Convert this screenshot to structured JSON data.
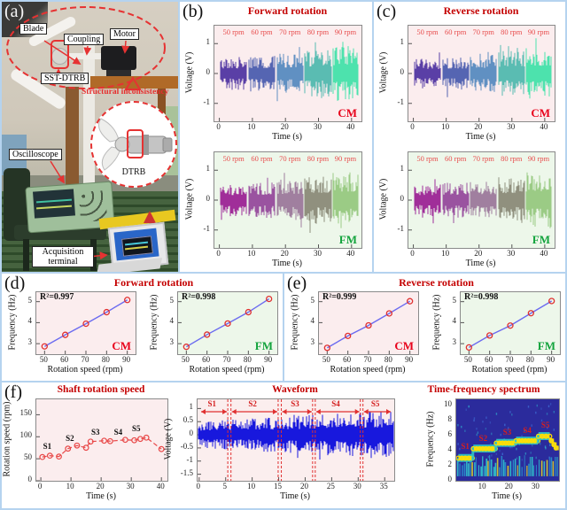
{
  "colors": {
    "frame_blue": "#b5d3ef",
    "title_red": "#c40000",
    "rpm_red": "#e84d4d",
    "cm_red": "#e8001a",
    "fm_green": "#12a33c",
    "cm_bg_pink": "#fbedee",
    "fm_bg_green": "#edf7ea",
    "wave_blue": "#1818dd",
    "fit_line_blue": "#6b6bf0",
    "marker_red": "#e03030",
    "spectrogram_bg": "#2b2b9c"
  },
  "panels": {
    "a": {
      "label": "(a)",
      "blade": "Blade",
      "coupling": "Coupling",
      "motor": "Motor",
      "sst_dtrb": "SST-DTRB",
      "structural_inconsistency": "Structural inconsistency",
      "oscilloscope": "Oscilloscope",
      "dtrb": "DTRB",
      "acquisition_terminal": "Acquisition terminal"
    },
    "b": {
      "label": "(b)",
      "title": "Forward rotation"
    },
    "c": {
      "label": "(c)",
      "title": "Reverse rotation"
    },
    "d": {
      "label": "(d)",
      "title": "Forward rotation"
    },
    "e": {
      "label": "(e)",
      "title": "Reverse rotation"
    },
    "f": {
      "label": "(f)"
    }
  },
  "chart_data": [
    {
      "id": "b-cm",
      "type": "line",
      "render": "noise",
      "panel": "(b)",
      "title": "Forward rotation",
      "xlabel": "Time (s)",
      "ylabel": "Voltage (V)",
      "xlim": [
        -1.5,
        43
      ],
      "ylim": [
        -1.6,
        1.6
      ],
      "xticks": [
        0,
        10,
        20,
        30,
        40
      ],
      "yticks": [
        -1,
        0,
        1
      ],
      "bg": "#fbedee",
      "corner": "CM",
      "corner_color": "#e8001a",
      "rpm_labels": [
        "50 rpm",
        "60 rpm",
        "70 rpm",
        "80 rpm",
        "90 rpm"
      ],
      "segments": [
        {
          "rpm": 50,
          "t": [
            0.3,
            8.3
          ],
          "amp": 0.55,
          "color": "#5a3fa6"
        },
        {
          "rpm": 60,
          "t": [
            8.8,
            16.9
          ],
          "amp": 0.6,
          "color": "#5565b2"
        },
        {
          "rpm": 70,
          "t": [
            17.3,
            25.4
          ],
          "amp": 0.66,
          "color": "#6090c2"
        },
        {
          "rpm": 80,
          "t": [
            25.8,
            33.9
          ],
          "amp": 0.78,
          "color": "#5abcb2"
        },
        {
          "rpm": 90,
          "t": [
            34.3,
            42
          ],
          "amp": 0.92,
          "color": "#4de2ad"
        }
      ]
    },
    {
      "id": "b-fm",
      "type": "line",
      "render": "noise",
      "panel": "(b)",
      "title": "Forward rotation",
      "xlabel": "Time (s)",
      "ylabel": "Voltage (V)",
      "xlim": [
        -1.5,
        43
      ],
      "ylim": [
        -1.6,
        1.6
      ],
      "xticks": [
        0,
        10,
        20,
        30,
        40
      ],
      "yticks": [
        -1,
        0,
        1
      ],
      "bg": "#edf7ea",
      "corner": "FM",
      "corner_color": "#12a33c",
      "rpm_labels": [
        "50 rpm",
        "60 rpm",
        "70 rpm",
        "80 rpm",
        "90 rpm"
      ],
      "segments": [
        {
          "rpm": 50,
          "t": [
            0.3,
            8.3
          ],
          "amp": 0.55,
          "color": "#a02e99"
        },
        {
          "rpm": 60,
          "t": [
            8.8,
            16.9
          ],
          "amp": 0.6,
          "color": "#9a53a0"
        },
        {
          "rpm": 70,
          "t": [
            17.3,
            25.4
          ],
          "amp": 0.68,
          "color": "#a07f9f"
        },
        {
          "rpm": 80,
          "t": [
            25.8,
            33.9
          ],
          "amp": 0.8,
          "color": "#90907e"
        },
        {
          "rpm": 90,
          "t": [
            34.3,
            42
          ],
          "amp": 0.95,
          "color": "#9bcb85"
        }
      ]
    },
    {
      "id": "c-cm",
      "type": "line",
      "render": "noise",
      "panel": "(c)",
      "title": "Reverse rotation",
      "xlabel": "Time (s)",
      "ylabel": "Voltage (V)",
      "xlim": [
        -1.5,
        43
      ],
      "ylim": [
        -1.6,
        1.6
      ],
      "xticks": [
        0,
        10,
        20,
        30,
        40
      ],
      "yticks": [
        -1,
        0,
        1
      ],
      "bg": "#fbedee",
      "corner": "CM",
      "corner_color": "#e8001a",
      "rpm_labels": [
        "50 rpm",
        "60 rpm",
        "70 rpm",
        "80 rpm",
        "90 rpm"
      ],
      "segments": [
        {
          "rpm": 50,
          "t": [
            0.3,
            8.3
          ],
          "amp": 0.5,
          "color": "#5a3fa6"
        },
        {
          "rpm": 60,
          "t": [
            8.8,
            16.9
          ],
          "amp": 0.55,
          "color": "#5565b2"
        },
        {
          "rpm": 70,
          "t": [
            17.3,
            25.4
          ],
          "amp": 0.62,
          "color": "#6090c2"
        },
        {
          "rpm": 80,
          "t": [
            25.8,
            33.9
          ],
          "amp": 0.75,
          "color": "#5abcb2"
        },
        {
          "rpm": 90,
          "t": [
            34.3,
            42
          ],
          "amp": 0.85,
          "color": "#4de2ad"
        }
      ]
    },
    {
      "id": "c-fm",
      "type": "line",
      "render": "noise",
      "panel": "(c)",
      "title": "Reverse rotation",
      "xlabel": "Time (s)",
      "ylabel": "Voltage (V)",
      "xlim": [
        -1.5,
        43
      ],
      "ylim": [
        -1.6,
        1.6
      ],
      "xticks": [
        0,
        10,
        20,
        30,
        40
      ],
      "yticks": [
        -1,
        0,
        1
      ],
      "bg": "#edf7ea",
      "corner": "FM",
      "corner_color": "#12a33c",
      "rpm_labels": [
        "50 rpm",
        "60 rpm",
        "70 rpm",
        "80 rpm",
        "90 rpm"
      ],
      "segments": [
        {
          "rpm": 50,
          "t": [
            0.3,
            8.3
          ],
          "amp": 0.55,
          "color": "#a02e99"
        },
        {
          "rpm": 60,
          "t": [
            8.8,
            16.9
          ],
          "amp": 0.6,
          "color": "#9a53a0"
        },
        {
          "rpm": 70,
          "t": [
            17.3,
            25.4
          ],
          "amp": 0.65,
          "color": "#a07f9f"
        },
        {
          "rpm": 80,
          "t": [
            25.8,
            33.9
          ],
          "amp": 0.78,
          "color": "#90907e"
        },
        {
          "rpm": 90,
          "t": [
            34.3,
            42
          ],
          "amp": 0.95,
          "color": "#9bcb85"
        }
      ]
    },
    {
      "id": "d-cm",
      "type": "scatter",
      "render": "scatterline",
      "panel": "(d)",
      "title": "Forward rotation",
      "r2": "R²=0.997",
      "xlabel": "Rotation speed (rpm)",
      "ylabel": "Frequency (Hz)",
      "xlim": [
        46,
        94
      ],
      "ylim": [
        2.5,
        5.45
      ],
      "xticks": [
        50,
        60,
        70,
        80,
        90
      ],
      "yticks": [
        3,
        4,
        5
      ],
      "bg": "#fbedee",
      "corner": "CM",
      "corner_color": "#e8001a",
      "yloff": 26,
      "x": [
        50,
        60,
        70,
        80,
        90
      ],
      "y": [
        2.87,
        3.42,
        3.95,
        4.5,
        5.08
      ]
    },
    {
      "id": "d-fm",
      "type": "scatter",
      "render": "scatterline",
      "panel": "(d)",
      "title": "Forward rotation",
      "r2": "R²=0.998",
      "xlabel": "Rotation speed (rpm)",
      "ylabel": "Frequency (Hz)",
      "xlim": [
        46,
        94
      ],
      "ylim": [
        2.5,
        5.45
      ],
      "xticks": [
        50,
        60,
        70,
        80,
        90
      ],
      "yticks": [
        3,
        4,
        5
      ],
      "bg": "#edf7ea",
      "corner": "FM",
      "corner_color": "#12a33c",
      "yloff": 26,
      "x": [
        50,
        60,
        70,
        80,
        90
      ],
      "y": [
        2.85,
        3.43,
        3.96,
        4.5,
        5.13
      ]
    },
    {
      "id": "e-cm",
      "type": "scatter",
      "render": "scatterline",
      "panel": "(e)",
      "title": "Reverse rotation",
      "r2": "R²=0.999",
      "xlabel": "Rotation speed (rpm)",
      "ylabel": "Frequency (Hz)",
      "xlim": [
        46,
        94
      ],
      "ylim": [
        2.5,
        5.45
      ],
      "xticks": [
        50,
        60,
        70,
        80,
        90
      ],
      "yticks": [
        3,
        4,
        5
      ],
      "bg": "#fbedee",
      "corner": "CM",
      "corner_color": "#e8001a",
      "yloff": 26,
      "x": [
        50,
        60,
        70,
        80,
        90
      ],
      "y": [
        2.8,
        3.37,
        3.87,
        4.44,
        5.02
      ]
    },
    {
      "id": "e-fm",
      "type": "scatter",
      "render": "scatterline",
      "panel": "(e)",
      "title": "Reverse rotation",
      "r2": "R²=0.998",
      "xlabel": "Rotation speed (rpm)",
      "ylabel": "Frequency (Hz)",
      "xlim": [
        46,
        94
      ],
      "ylim": [
        2.5,
        5.45
      ],
      "xticks": [
        50,
        60,
        70,
        80,
        90
      ],
      "yticks": [
        3,
        4,
        5
      ],
      "bg": "#edf7ea",
      "corner": "FM",
      "corner_color": "#12a33c",
      "yloff": 26,
      "x": [
        50,
        60,
        70,
        80,
        90
      ],
      "y": [
        2.82,
        3.39,
        3.86,
        4.45,
        5.03
      ]
    },
    {
      "id": "f-speed",
      "type": "line",
      "render": "speed",
      "panel": "(f)",
      "title": "Shaft rotation speed",
      "xlabel": "Time (s)",
      "ylabel": "Rotation speed (rpm)",
      "xlim": [
        -1.5,
        42
      ],
      "ylim": [
        0,
        185
      ],
      "xticks": [
        0,
        10,
        20,
        30,
        40
      ],
      "yticks": [
        0,
        50,
        100,
        150
      ],
      "bg": "#fbedee",
      "yloff": 32,
      "points": [
        [
          0.5,
          54
        ],
        [
          3,
          57
        ],
        [
          6,
          55
        ],
        [
          9,
          73
        ],
        [
          12,
          80
        ],
        [
          15,
          75
        ],
        [
          16.5,
          89
        ],
        [
          21,
          91
        ],
        [
          23,
          90
        ],
        [
          28,
          93
        ],
        [
          31,
          92
        ],
        [
          33,
          95
        ],
        [
          35,
          98
        ],
        [
          40,
          72
        ]
      ],
      "s_labels": [
        "S1",
        "S2",
        "S3",
        "S4",
        "S5"
      ],
      "s_pos": [
        [
          2.5,
          66
        ],
        [
          10,
          85
        ],
        [
          18.5,
          99
        ],
        [
          26,
          99
        ],
        [
          32,
          107
        ]
      ]
    },
    {
      "id": "f-wave",
      "type": "line",
      "render": "wave",
      "panel": "(f)",
      "title": "Waveform",
      "xlabel": "Time (s)",
      "ylabel": "Voltage (V)",
      "xlim": [
        -0.3,
        36.8
      ],
      "ylim": [
        -1.75,
        1.35
      ],
      "xticks": [
        0,
        5,
        10,
        15,
        20,
        25,
        30,
        35
      ],
      "yticks": [
        1,
        0.5,
        0,
        -0.5,
        -1,
        -1.5
      ],
      "bg": "#fbeeee",
      "yloff": 32,
      "line_color": "#1818dd",
      "boundaries": [
        [
          5.4,
          6.0
        ],
        [
          14.9,
          15.5
        ],
        [
          21.4,
          21.9
        ],
        [
          30.4,
          30.9
        ]
      ],
      "arrow_spans": [
        [
          0.2,
          5.4
        ],
        [
          6.0,
          14.9
        ],
        [
          15.5,
          21.4
        ],
        [
          21.9,
          30.4
        ],
        [
          30.9,
          36.3
        ]
      ],
      "s_labels": [
        "S1",
        "S2",
        "S3",
        "S4",
        "S5"
      ]
    },
    {
      "id": "f-tfs",
      "type": "heatmap",
      "render": "tfs",
      "panel": "(f)",
      "title": "Time-frequency spectrum",
      "xlabel": "Time (s)",
      "ylabel": "Frequency (Hz)",
      "xlim": [
        0,
        38.5
      ],
      "ylim": [
        0,
        10.8
      ],
      "xticks": [
        10,
        20,
        30
      ],
      "yticks": [
        0,
        2,
        4,
        6,
        8,
        10
      ],
      "bg": "#2b2b9c",
      "yloff": 28,
      "ridge": [
        {
          "label": "S1",
          "t": [
            0.8,
            6.0
          ],
          "f": 3.0
        },
        {
          "label": "S2",
          "t": [
            6.4,
            14.6
          ],
          "f": 4.25
        },
        {
          "label": "S3",
          "t": [
            15.0,
            22.0
          ],
          "f": 5.0
        },
        {
          "label": "S4",
          "t": [
            22.4,
            30.6
          ],
          "f": 5.3
        },
        {
          "label": "S5",
          "t": [
            30.8,
            35.0
          ],
          "f": 5.9
        }
      ],
      "tail": [
        [
          35.6,
          5.3
        ],
        [
          36.6,
          4.8
        ],
        [
          37.4,
          4.35
        ]
      ],
      "s_label_pos": [
        [
          1.8,
          3.95
        ],
        [
          8.5,
          5.05
        ],
        [
          17.5,
          5.85
        ],
        [
          25,
          6.15
        ],
        [
          31.8,
          6.85
        ]
      ]
    }
  ]
}
